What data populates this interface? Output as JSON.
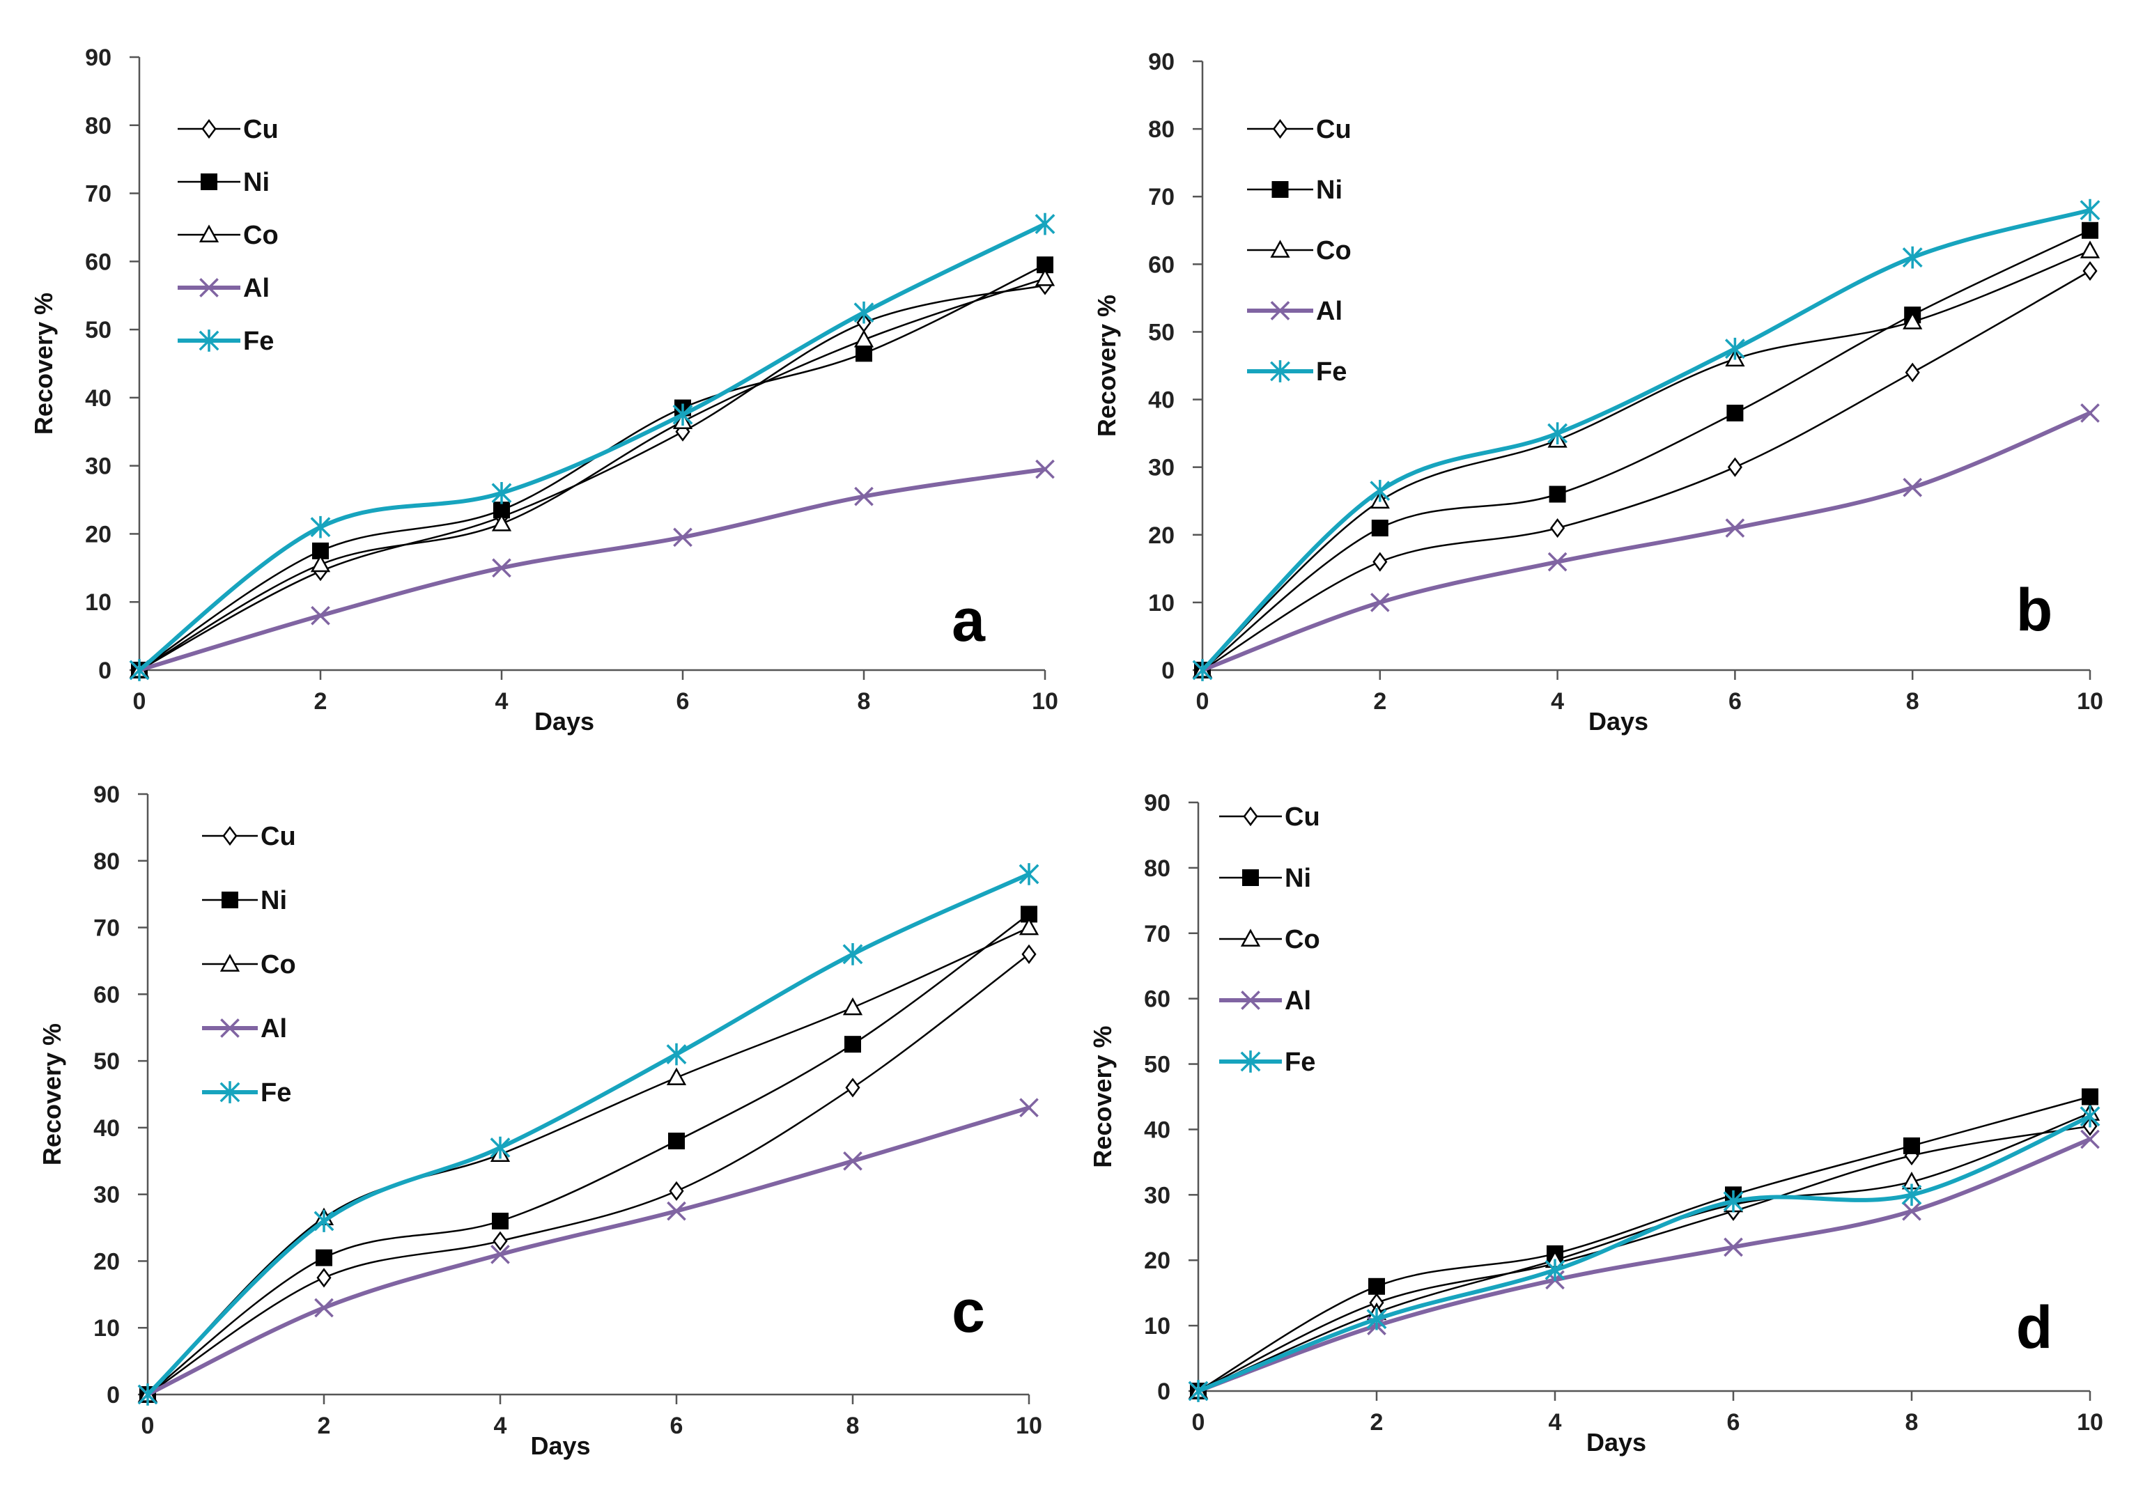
{
  "series_styles": {
    "Cu": {
      "color": "#000000",
      "marker": "diamond-open"
    },
    "Ni": {
      "color": "#000000",
      "marker": "square-filled"
    },
    "Co": {
      "color": "#000000",
      "marker": "triangle-open"
    },
    "Al": {
      "color": "#8064A2",
      "marker": "x"
    },
    "Fe": {
      "color": "#17A4BE",
      "marker": "star"
    }
  },
  "chart_data": [
    {
      "type": "line",
      "panel": "a",
      "xlabel": "Days",
      "ylabel": "Recovery %",
      "x": [
        0,
        2,
        4,
        6,
        8,
        10
      ],
      "xlim": [
        0,
        10
      ],
      "ylim": [
        0,
        90
      ],
      "xticks": [
        "0",
        "2",
        "4",
        "6",
        "8",
        "10"
      ],
      "yticks": [
        "0",
        "10",
        "20",
        "30",
        "40",
        "50",
        "60",
        "70",
        "80",
        "90"
      ],
      "legend_position": "top-left",
      "series": [
        {
          "name": "Cu",
          "values": [
            0,
            14.5,
            22.5,
            35,
            51,
            56.5
          ]
        },
        {
          "name": "Ni",
          "values": [
            0,
            17.5,
            23.5,
            38.5,
            46.5,
            59.5
          ]
        },
        {
          "name": "Co",
          "values": [
            0,
            15.5,
            21.5,
            36.5,
            48.5,
            57.5
          ]
        },
        {
          "name": "Al",
          "values": [
            0,
            8,
            15,
            19.5,
            25.5,
            29.5
          ]
        },
        {
          "name": "Fe",
          "values": [
            0,
            21,
            26,
            37.5,
            52.5,
            65.5
          ]
        }
      ]
    },
    {
      "type": "line",
      "panel": "b",
      "xlabel": "Days",
      "ylabel": "Recovery %",
      "x": [
        0,
        2,
        4,
        6,
        8,
        10
      ],
      "xlim": [
        0,
        10
      ],
      "ylim": [
        0,
        90
      ],
      "xticks": [
        "0",
        "2",
        "4",
        "6",
        "8",
        "10"
      ],
      "yticks": [
        "0",
        "10",
        "20",
        "30",
        "40",
        "50",
        "60",
        "70",
        "80",
        "90"
      ],
      "legend_position": "top-left",
      "series": [
        {
          "name": "Cu",
          "values": [
            0,
            16,
            21,
            30,
            44,
            59
          ]
        },
        {
          "name": "Ni",
          "values": [
            0,
            21,
            26,
            38,
            52.5,
            65
          ]
        },
        {
          "name": "Co",
          "values": [
            0,
            25,
            34,
            46,
            51.5,
            62
          ]
        },
        {
          "name": "Al",
          "values": [
            0,
            10,
            16,
            21,
            27,
            38
          ]
        },
        {
          "name": "Fe",
          "values": [
            0,
            26.5,
            35,
            47.5,
            61,
            68
          ]
        }
      ]
    },
    {
      "type": "line",
      "panel": "c",
      "xlabel": "Days",
      "ylabel": "Recovery %",
      "x": [
        0,
        2,
        4,
        6,
        8,
        10
      ],
      "xlim": [
        0,
        10
      ],
      "ylim": [
        0,
        90
      ],
      "xticks": [
        "0",
        "2",
        "4",
        "6",
        "8",
        "10"
      ],
      "yticks": [
        "0",
        "10",
        "20",
        "30",
        "40",
        "50",
        "60",
        "70",
        "80",
        "90"
      ],
      "legend_position": "top-left",
      "series": [
        {
          "name": "Cu",
          "values": [
            0,
            17.5,
            23,
            30.5,
            46,
            66
          ]
        },
        {
          "name": "Ni",
          "values": [
            0,
            20.5,
            26,
            38,
            52.5,
            72
          ]
        },
        {
          "name": "Co",
          "values": [
            0,
            26.5,
            36,
            47.5,
            58,
            70
          ]
        },
        {
          "name": "Al",
          "values": [
            0,
            13,
            21,
            27.5,
            35,
            43
          ]
        },
        {
          "name": "Fe",
          "values": [
            0,
            26,
            37,
            51,
            66,
            78
          ]
        }
      ]
    },
    {
      "type": "line",
      "panel": "d",
      "xlabel": "Days",
      "ylabel": "Recovery %",
      "x": [
        0,
        2,
        4,
        6,
        8,
        10
      ],
      "xlim": [
        0,
        10
      ],
      "ylim": [
        0,
        90
      ],
      "xticks": [
        "0",
        "2",
        "4",
        "6",
        "8",
        "10"
      ],
      "yticks": [
        "0",
        "10",
        "20",
        "30",
        "40",
        "50",
        "60",
        "70",
        "80",
        "90"
      ],
      "legend_position": "top-left",
      "series": [
        {
          "name": "Cu",
          "values": [
            0,
            13.5,
            19.5,
            27.5,
            36,
            40.5
          ]
        },
        {
          "name": "Ni",
          "values": [
            0,
            16,
            21,
            30,
            37.5,
            45
          ]
        },
        {
          "name": "Co",
          "values": [
            0,
            12,
            20,
            28.5,
            32,
            42.5
          ]
        },
        {
          "name": "Al",
          "values": [
            0,
            10,
            17,
            22,
            27.5,
            38.5
          ]
        },
        {
          "name": "Fe",
          "values": [
            0,
            11,
            18.5,
            29,
            30,
            42
          ]
        }
      ]
    }
  ]
}
